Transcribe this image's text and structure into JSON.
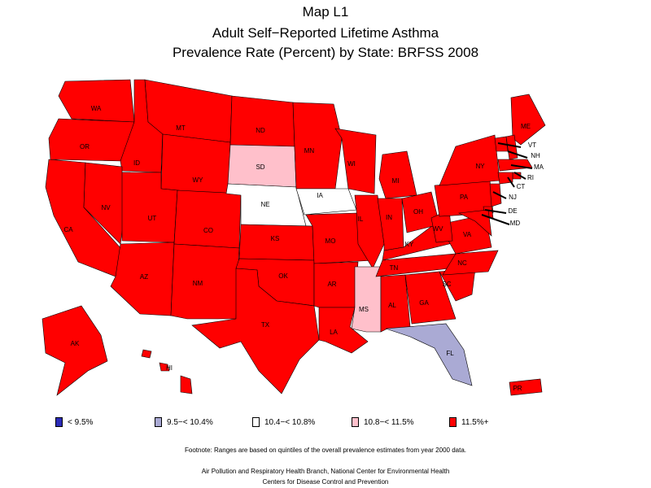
{
  "title": {
    "line1": "Map L1",
    "line2": "Adult Self−Reported Lifetime Asthma",
    "line3": "Prevalence Rate (Percent) by State: BRFSS 2008"
  },
  "colors": {
    "c1": "#2b2bb8",
    "c2": "#aaaad4",
    "c3": "#ffffff",
    "c4": "#ffc0cb",
    "c5": "#ff0000"
  },
  "legend": [
    {
      "label": "< 9.5%",
      "color": "#2b2bb8"
    },
    {
      "label": "9.5−< 10.4%",
      "color": "#aaaad4"
    },
    {
      "label": "10.4−< 10.8%",
      "color": "#ffffff"
    },
    {
      "label": "10.8−< 11.5%",
      "color": "#ffc0cb"
    },
    {
      "label": "11.5%+",
      "color": "#ff0000"
    }
  ],
  "states": [
    {
      "abbr": "WA",
      "class": 5
    },
    {
      "abbr": "OR",
      "class": 5
    },
    {
      "abbr": "CA",
      "class": 5
    },
    {
      "abbr": "ID",
      "class": 5
    },
    {
      "abbr": "NV",
      "class": 5
    },
    {
      "abbr": "MT",
      "class": 5
    },
    {
      "abbr": "WY",
      "class": 5
    },
    {
      "abbr": "UT",
      "class": 5
    },
    {
      "abbr": "AZ",
      "class": 5
    },
    {
      "abbr": "CO",
      "class": 5
    },
    {
      "abbr": "NM",
      "class": 5
    },
    {
      "abbr": "ND",
      "class": 5
    },
    {
      "abbr": "SD",
      "class": 4
    },
    {
      "abbr": "NE",
      "class": 3
    },
    {
      "abbr": "KS",
      "class": 5
    },
    {
      "abbr": "OK",
      "class": 5
    },
    {
      "abbr": "TX",
      "class": 5
    },
    {
      "abbr": "MN",
      "class": 5
    },
    {
      "abbr": "IA",
      "class": 3
    },
    {
      "abbr": "MO",
      "class": 5
    },
    {
      "abbr": "AR",
      "class": 5
    },
    {
      "abbr": "LA",
      "class": 5
    },
    {
      "abbr": "WI",
      "class": 5
    },
    {
      "abbr": "IL",
      "class": 5
    },
    {
      "abbr": "MS",
      "class": 4
    },
    {
      "abbr": "MI",
      "class": 5
    },
    {
      "abbr": "IN",
      "class": 5
    },
    {
      "abbr": "KY",
      "class": 5
    },
    {
      "abbr": "TN",
      "class": 5
    },
    {
      "abbr": "AL",
      "class": 5
    },
    {
      "abbr": "OH",
      "class": 5
    },
    {
      "abbr": "GA",
      "class": 5
    },
    {
      "abbr": "FL",
      "class": 2
    },
    {
      "abbr": "SC",
      "class": 5
    },
    {
      "abbr": "NC",
      "class": 5
    },
    {
      "abbr": "VA",
      "class": 5
    },
    {
      "abbr": "WV",
      "class": 5
    },
    {
      "abbr": "PA",
      "class": 5
    },
    {
      "abbr": "NY",
      "class": 5
    },
    {
      "abbr": "ME",
      "class": 5
    },
    {
      "abbr": "VT",
      "class": 5
    },
    {
      "abbr": "NH",
      "class": 5
    },
    {
      "abbr": "MA",
      "class": 5
    },
    {
      "abbr": "RI",
      "class": 5
    },
    {
      "abbr": "CT",
      "class": 5
    },
    {
      "abbr": "NJ",
      "class": 5
    },
    {
      "abbr": "DE",
      "class": 5
    },
    {
      "abbr": "MD",
      "class": 5
    },
    {
      "abbr": "AK",
      "class": 5
    },
    {
      "abbr": "HI",
      "class": 5
    },
    {
      "abbr": "PR",
      "class": 5
    }
  ],
  "footnote": "Footnote: Ranges are based on quintiles of the overall prevalence estimates from year 2000 data.",
  "credit1": "Air Pollution and Respiratory Health Branch, National Center for Environmental Health",
  "credit2": "Centers for Disease Control and Prevention"
}
